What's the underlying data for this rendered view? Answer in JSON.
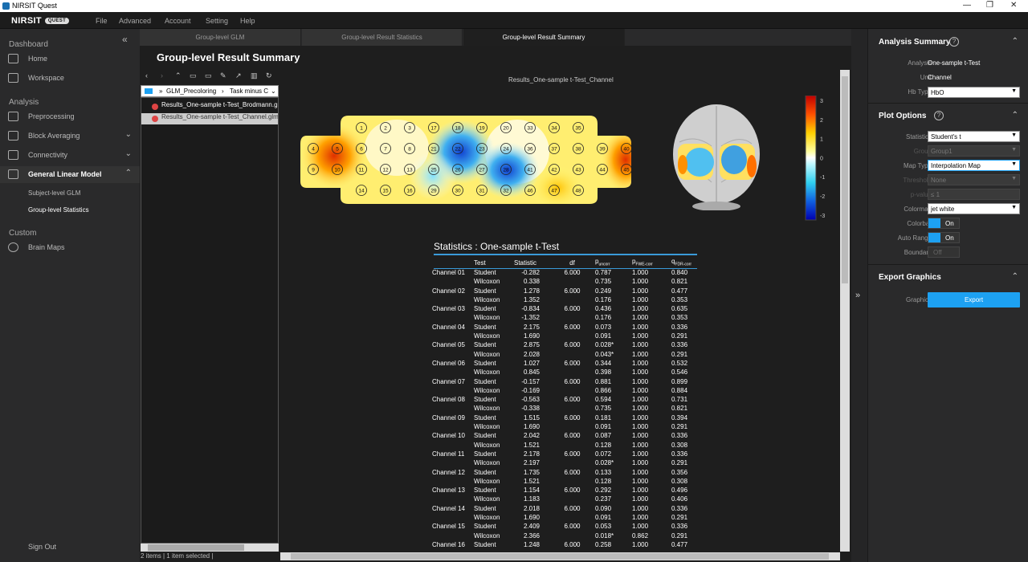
{
  "app": {
    "title": "NIRSIT Quest",
    "logo": "NIRSIT",
    "logo_badge": "QUEST"
  },
  "menu": [
    "File",
    "Advanced",
    "Account",
    "Setting",
    "Help"
  ],
  "sidebar": {
    "sections": {
      "dashboard": "Dashboard",
      "analysis": "Analysis",
      "custom": "Custom"
    },
    "items": {
      "home": "Home",
      "workspace": "Workspace",
      "preprocessing": "Preprocessing",
      "block_averaging": "Block Averaging",
      "connectivity": "Connectivity",
      "glm": "General Linear Model",
      "subject_glm": "Subject-level GLM",
      "group_stats": "Group-level Statistics",
      "brain_maps": "Brain Maps",
      "sign_out": "Sign Out"
    }
  },
  "tabs": [
    "Group-level GLM",
    "Group-level Result Statistics",
    "Group-level Result Summary"
  ],
  "page_title": "Group-level Result Summary",
  "file_browser": {
    "path": [
      "GLM_Precoloring",
      "Task minus C"
    ],
    "files": [
      "Results_One-sample t-Test_Brodmann.gl",
      "Results_One-sample t-Test_Channel.glm"
    ],
    "status": "2 items | 1 item selected |"
  },
  "plot": {
    "caption": "Results_One-sample t-Test_Channel",
    "colorbar_ticks": [
      "3",
      "2",
      "1",
      "0",
      "-1",
      "-2",
      "-3"
    ],
    "channels_row1": [
      "1",
      "2",
      "3",
      "17",
      "18",
      "19",
      "20",
      "33",
      "34",
      "35"
    ],
    "channels_row2": [
      "4",
      "5",
      "6",
      "7",
      "8",
      "21",
      "22",
      "23",
      "24",
      "36",
      "37",
      "38",
      "39",
      "40"
    ],
    "channels_row3": [
      "9",
      "10",
      "11",
      "12",
      "13",
      "25",
      "26",
      "27",
      "28",
      "41",
      "42",
      "43",
      "44",
      "45"
    ],
    "channels_row4": [
      "14",
      "15",
      "16",
      "29",
      "30",
      "31",
      "32",
      "46",
      "47",
      "48"
    ]
  },
  "stats": {
    "title": "Statistics : One-sample t-Test",
    "headers": {
      "test": "Test",
      "statistic": "Statistic",
      "df": "df",
      "p_unc": "p",
      "p_unc_sub": "uncorr",
      "p_fwe": "p",
      "p_fwe_sub": "FWE-corr",
      "q_fdr": "q",
      "q_fdr_sub": "FDR-corr"
    },
    "rows": [
      {
        "ch": "Channel 01",
        "df": "6.000",
        "s": [
          "-0.282",
          "0.787",
          "1.000",
          "0.840"
        ],
        "w": [
          "0.338",
          "0.735",
          "1.000",
          "0.821"
        ]
      },
      {
        "ch": "Channel 02",
        "df": "6.000",
        "s": [
          "1.278",
          "0.249",
          "1.000",
          "0.477"
        ],
        "w": [
          "1.352",
          "0.176",
          "1.000",
          "0.353"
        ]
      },
      {
        "ch": "Channel 03",
        "df": "6.000",
        "s": [
          "-0.834",
          "0.436",
          "1.000",
          "0.635"
        ],
        "w": [
          "-1.352",
          "0.176",
          "1.000",
          "0.353"
        ]
      },
      {
        "ch": "Channel 04",
        "df": "6.000",
        "s": [
          "2.175",
          "0.073",
          "1.000",
          "0.336"
        ],
        "w": [
          "1.690",
          "0.091",
          "1.000",
          "0.291"
        ]
      },
      {
        "ch": "Channel 05",
        "df": "6.000",
        "s": [
          "2.875",
          "0.028*",
          "1.000",
          "0.336"
        ],
        "w": [
          "2.028",
          "0.043*",
          "1.000",
          "0.291"
        ]
      },
      {
        "ch": "Channel 06",
        "df": "6.000",
        "s": [
          "1.027",
          "0.344",
          "1.000",
          "0.532"
        ],
        "w": [
          "0.845",
          "0.398",
          "1.000",
          "0.546"
        ]
      },
      {
        "ch": "Channel 07",
        "df": "6.000",
        "s": [
          "-0.157",
          "0.881",
          "1.000",
          "0.899"
        ],
        "w": [
          "-0.169",
          "0.866",
          "1.000",
          "0.884"
        ]
      },
      {
        "ch": "Channel 08",
        "df": "6.000",
        "s": [
          "-0.563",
          "0.594",
          "1.000",
          "0.731"
        ],
        "w": [
          "-0.338",
          "0.735",
          "1.000",
          "0.821"
        ]
      },
      {
        "ch": "Channel 09",
        "df": "6.000",
        "s": [
          "1.515",
          "0.181",
          "1.000",
          "0.394"
        ],
        "w": [
          "1.690",
          "0.091",
          "1.000",
          "0.291"
        ]
      },
      {
        "ch": "Channel 10",
        "df": "6.000",
        "s": [
          "2.042",
          "0.087",
          "1.000",
          "0.336"
        ],
        "w": [
          "1.521",
          "0.128",
          "1.000",
          "0.308"
        ]
      },
      {
        "ch": "Channel 11",
        "df": "6.000",
        "s": [
          "2.178",
          "0.072",
          "1.000",
          "0.336"
        ],
        "w": [
          "2.197",
          "0.028*",
          "1.000",
          "0.291"
        ]
      },
      {
        "ch": "Channel 12",
        "df": "6.000",
        "s": [
          "1.735",
          "0.133",
          "1.000",
          "0.356"
        ],
        "w": [
          "1.521",
          "0.128",
          "1.000",
          "0.308"
        ]
      },
      {
        "ch": "Channel 13",
        "df": "6.000",
        "s": [
          "1.154",
          "0.292",
          "1.000",
          "0.496"
        ],
        "w": [
          "1.183",
          "0.237",
          "1.000",
          "0.406"
        ]
      },
      {
        "ch": "Channel 14",
        "df": "6.000",
        "s": [
          "2.018",
          "0.090",
          "1.000",
          "0.336"
        ],
        "w": [
          "1.690",
          "0.091",
          "1.000",
          "0.291"
        ]
      },
      {
        "ch": "Channel 15",
        "df": "6.000",
        "s": [
          "2.409",
          "0.053",
          "1.000",
          "0.336"
        ],
        "w": [
          "2.366",
          "0.018*",
          "0.862",
          "0.291"
        ]
      },
      {
        "ch": "Channel 16",
        "df": "6.000",
        "s": [
          "1.248",
          "0.258",
          "1.000",
          "0.477"
        ],
        "w": [
          "",
          "",
          "",
          ""
        ]
      }
    ],
    "student": "Student",
    "wilcoxon": "Wilcoxon"
  },
  "right": {
    "analysis_summary": "Analysis Summary",
    "analysis_label": "Analysis",
    "analysis_value": "One-sample t-Test",
    "unit_label": "Unit",
    "unit_value": "Channel",
    "hb_label": "Hb Type",
    "hb_value": "HbO",
    "plot_options": "Plot Options",
    "statistics_label": "Statistics",
    "statistics_value": "Student's t",
    "group_label": "Group",
    "group_value": "Group1",
    "maptype_label": "Map Type",
    "maptype_value": "Interpolation Map",
    "threshold_label": "Threshold",
    "threshold_value": "None",
    "pvalue_label": "p-value",
    "pvalue_value": "≤  1",
    "colormap_label": "Colormap",
    "colormap_value": "jet white",
    "colorbar_label": "Colorbar",
    "colorbar_value": "On",
    "autorange_label": "Auto Range",
    "autorange_value": "On",
    "boundary_label": "Boundary",
    "boundary_value": "Off",
    "export_graphics": "Export Graphics",
    "graphics_label": "Graphics",
    "export_button": "Export"
  },
  "colors": {
    "accent": "#1da1f2",
    "table_rule": "#3a9ad9"
  }
}
